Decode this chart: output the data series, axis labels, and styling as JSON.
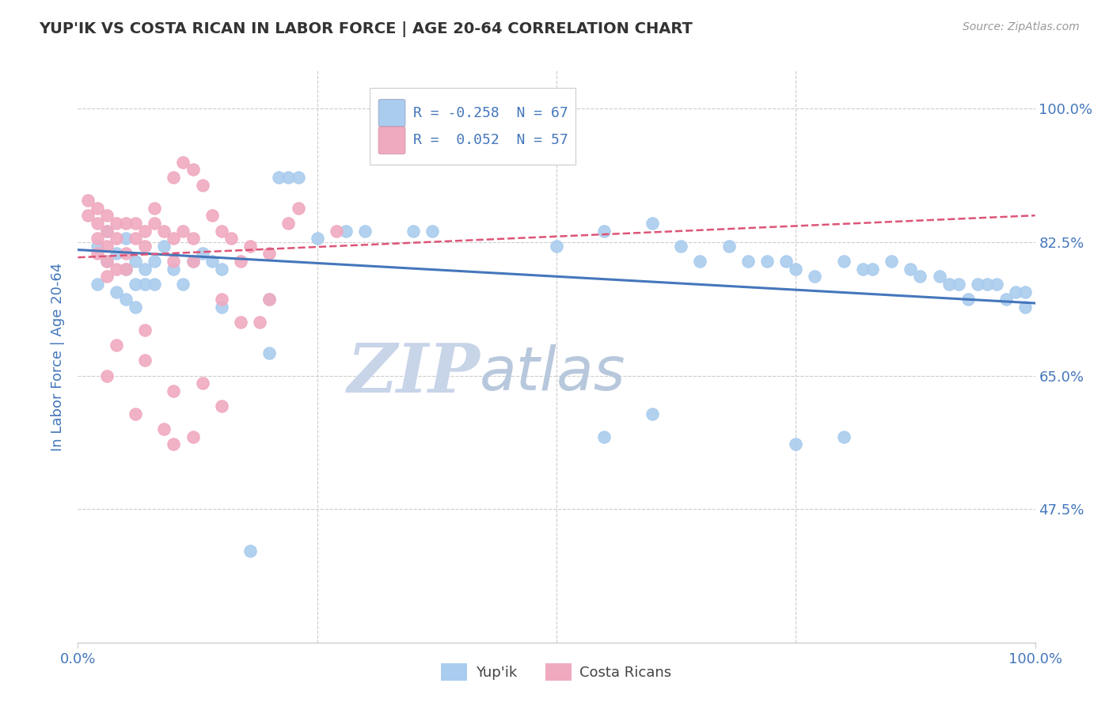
{
  "title": "YUP'IK VS COSTA RICAN IN LABOR FORCE | AGE 20-64 CORRELATION CHART",
  "source_text": "Source: ZipAtlas.com",
  "ylabel": "In Labor Force | Age 20-64",
  "xlim": [
    0.0,
    1.0
  ],
  "ylim": [
    0.3,
    1.05
  ],
  "yticks": [
    0.475,
    0.65,
    0.825,
    1.0
  ],
  "ytick_labels": [
    "47.5%",
    "65.0%",
    "82.5%",
    "100.0%"
  ],
  "xticks": [
    0.0,
    1.0
  ],
  "xtick_labels": [
    "0.0%",
    "100.0%"
  ],
  "watermark_zip": "ZIP",
  "watermark_atlas": "atlas",
  "legend_r1": "R = -0.258",
  "legend_n1": "N = 67",
  "legend_r2": "R =  0.052",
  "legend_n2": "N = 57",
  "scatter_blue": [
    [
      0.02,
      0.82
    ],
    [
      0.03,
      0.84
    ],
    [
      0.04,
      0.81
    ],
    [
      0.05,
      0.83
    ],
    [
      0.05,
      0.79
    ],
    [
      0.06,
      0.8
    ],
    [
      0.06,
      0.77
    ],
    [
      0.07,
      0.79
    ],
    [
      0.07,
      0.77
    ],
    [
      0.08,
      0.8
    ],
    [
      0.08,
      0.77
    ],
    [
      0.09,
      0.82
    ],
    [
      0.1,
      0.79
    ],
    [
      0.11,
      0.77
    ],
    [
      0.12,
      0.8
    ],
    [
      0.13,
      0.81
    ],
    [
      0.14,
      0.8
    ],
    [
      0.15,
      0.79
    ],
    [
      0.02,
      0.77
    ],
    [
      0.03,
      0.8
    ],
    [
      0.04,
      0.76
    ],
    [
      0.05,
      0.75
    ],
    [
      0.06,
      0.74
    ],
    [
      0.21,
      0.91
    ],
    [
      0.22,
      0.91
    ],
    [
      0.23,
      0.91
    ],
    [
      0.28,
      0.84
    ],
    [
      0.3,
      0.84
    ],
    [
      0.35,
      0.84
    ],
    [
      0.37,
      0.84
    ],
    [
      0.15,
      0.74
    ],
    [
      0.2,
      0.75
    ],
    [
      0.25,
      0.83
    ],
    [
      0.5,
      0.82
    ],
    [
      0.55,
      0.84
    ],
    [
      0.6,
      0.85
    ],
    [
      0.63,
      0.82
    ],
    [
      0.65,
      0.8
    ],
    [
      0.68,
      0.82
    ],
    [
      0.7,
      0.8
    ],
    [
      0.72,
      0.8
    ],
    [
      0.74,
      0.8
    ],
    [
      0.75,
      0.79
    ],
    [
      0.77,
      0.78
    ],
    [
      0.8,
      0.8
    ],
    [
      0.82,
      0.79
    ],
    [
      0.83,
      0.79
    ],
    [
      0.85,
      0.8
    ],
    [
      0.87,
      0.79
    ],
    [
      0.88,
      0.78
    ],
    [
      0.9,
      0.78
    ],
    [
      0.91,
      0.77
    ],
    [
      0.92,
      0.77
    ],
    [
      0.93,
      0.75
    ],
    [
      0.94,
      0.77
    ],
    [
      0.95,
      0.77
    ],
    [
      0.96,
      0.77
    ],
    [
      0.97,
      0.75
    ],
    [
      0.98,
      0.76
    ],
    [
      0.99,
      0.76
    ],
    [
      0.99,
      0.74
    ],
    [
      0.6,
      0.6
    ],
    [
      0.8,
      0.57
    ],
    [
      0.2,
      0.68
    ],
    [
      0.55,
      0.57
    ],
    [
      0.75,
      0.56
    ],
    [
      0.18,
      0.42
    ]
  ],
  "scatter_pink": [
    [
      0.01,
      0.88
    ],
    [
      0.01,
      0.86
    ],
    [
      0.02,
      0.87
    ],
    [
      0.02,
      0.85
    ],
    [
      0.02,
      0.83
    ],
    [
      0.02,
      0.81
    ],
    [
      0.03,
      0.86
    ],
    [
      0.03,
      0.84
    ],
    [
      0.03,
      0.82
    ],
    [
      0.03,
      0.8
    ],
    [
      0.03,
      0.78
    ],
    [
      0.04,
      0.83
    ],
    [
      0.04,
      0.85
    ],
    [
      0.04,
      0.79
    ],
    [
      0.05,
      0.85
    ],
    [
      0.05,
      0.81
    ],
    [
      0.05,
      0.79
    ],
    [
      0.06,
      0.85
    ],
    [
      0.06,
      0.83
    ],
    [
      0.07,
      0.84
    ],
    [
      0.07,
      0.82
    ],
    [
      0.08,
      0.87
    ],
    [
      0.08,
      0.85
    ],
    [
      0.09,
      0.84
    ],
    [
      0.1,
      0.83
    ],
    [
      0.1,
      0.8
    ],
    [
      0.11,
      0.84
    ],
    [
      0.12,
      0.83
    ],
    [
      0.12,
      0.8
    ],
    [
      0.14,
      0.86
    ],
    [
      0.15,
      0.84
    ],
    [
      0.16,
      0.83
    ],
    [
      0.17,
      0.8
    ],
    [
      0.18,
      0.82
    ],
    [
      0.2,
      0.81
    ],
    [
      0.22,
      0.85
    ],
    [
      0.1,
      0.91
    ],
    [
      0.11,
      0.93
    ],
    [
      0.12,
      0.92
    ],
    [
      0.13,
      0.9
    ],
    [
      0.23,
      0.87
    ],
    [
      0.27,
      0.84
    ],
    [
      0.15,
      0.75
    ],
    [
      0.17,
      0.72
    ],
    [
      0.07,
      0.71
    ],
    [
      0.07,
      0.67
    ],
    [
      0.04,
      0.69
    ],
    [
      0.03,
      0.65
    ],
    [
      0.06,
      0.6
    ],
    [
      0.09,
      0.58
    ],
    [
      0.12,
      0.57
    ],
    [
      0.1,
      0.63
    ],
    [
      0.13,
      0.64
    ],
    [
      0.19,
      0.72
    ],
    [
      0.2,
      0.75
    ],
    [
      0.1,
      0.56
    ],
    [
      0.15,
      0.61
    ]
  ],
  "blue_line": [
    [
      0.0,
      0.815
    ],
    [
      1.0,
      0.745
    ]
  ],
  "pink_line": [
    [
      0.0,
      0.805
    ],
    [
      1.0,
      0.86
    ]
  ],
  "grid_color": "#cccccc",
  "blue_scatter_color": "#aaccee",
  "pink_scatter_color": "#f0aac0",
  "blue_line_color": "#4477bb",
  "pink_line_color": "#dd5577",
  "title_color": "#333333",
  "axis_label_color": "#4477bb",
  "tick_label_color": "#4477bb",
  "source_color": "#999999",
  "watermark_zip_color": "#c8d4e8",
  "watermark_atlas_color": "#b8c8dc",
  "background_color": "#ffffff",
  "legend_bg": "#f8f8f8",
  "legend_border": "#cccccc",
  "bottom_legend_blue": "Yup'ik",
  "bottom_legend_pink": "Costa Ricans"
}
